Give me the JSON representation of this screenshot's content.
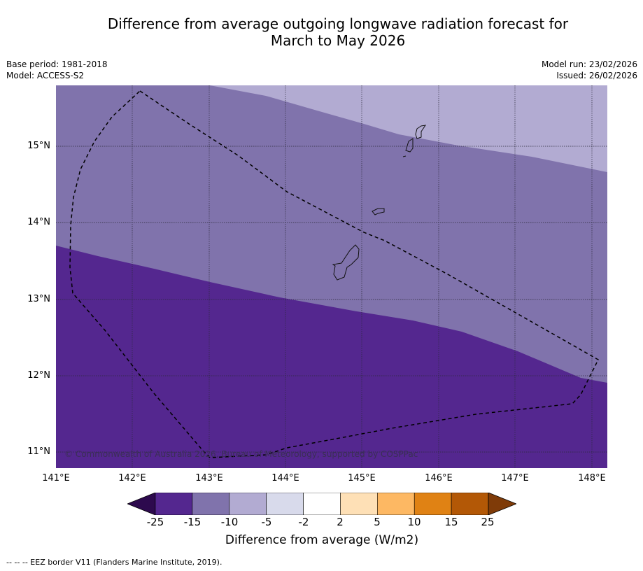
{
  "title_line1": "Difference from average outgoing longwave radiation forecast for",
  "title_line2": "March to May 2026",
  "base_period": "Base period: 1981-2018",
  "model": "Model: ACCESS-S2",
  "model_run": "Model run: 23/02/2026",
  "issued": "Issued: 26/02/2026",
  "lat_labels": [
    "15°N",
    "14°N",
    "13°N",
    "12°N",
    "11°N"
  ],
  "lon_labels": [
    "141°E",
    "142°E",
    "143°E",
    "144°E",
    "145°E",
    "146°E",
    "147°E",
    "148°E"
  ],
  "copyright": "© Commonwealth of Australia 2026, Bureau of Meteorology, supported by COSPPac",
  "colorbar": {
    "ticks": [
      "-25",
      "-15",
      "-10",
      "-5",
      "-2",
      "2",
      "5",
      "10",
      "15",
      "25"
    ],
    "colors": [
      "#2d0a4e",
      "#54278f",
      "#8073ac",
      "#b2abd2",
      "#d8daeb",
      "#ffffff",
      "#fee0b6",
      "#fdb863",
      "#e08214",
      "#b35806",
      "#7f3b08"
    ],
    "label": "Difference from average (W/m2)"
  },
  "map_colors": {
    "band_minus5_to_minus10": "#b2abd2",
    "band_minus10_to_minus15": "#8073ac",
    "band_minus15_to_minus25": "#54278f"
  },
  "footnote": "--  --  -- EEZ border V11 (Flanders Marine Institute, 2019)."
}
